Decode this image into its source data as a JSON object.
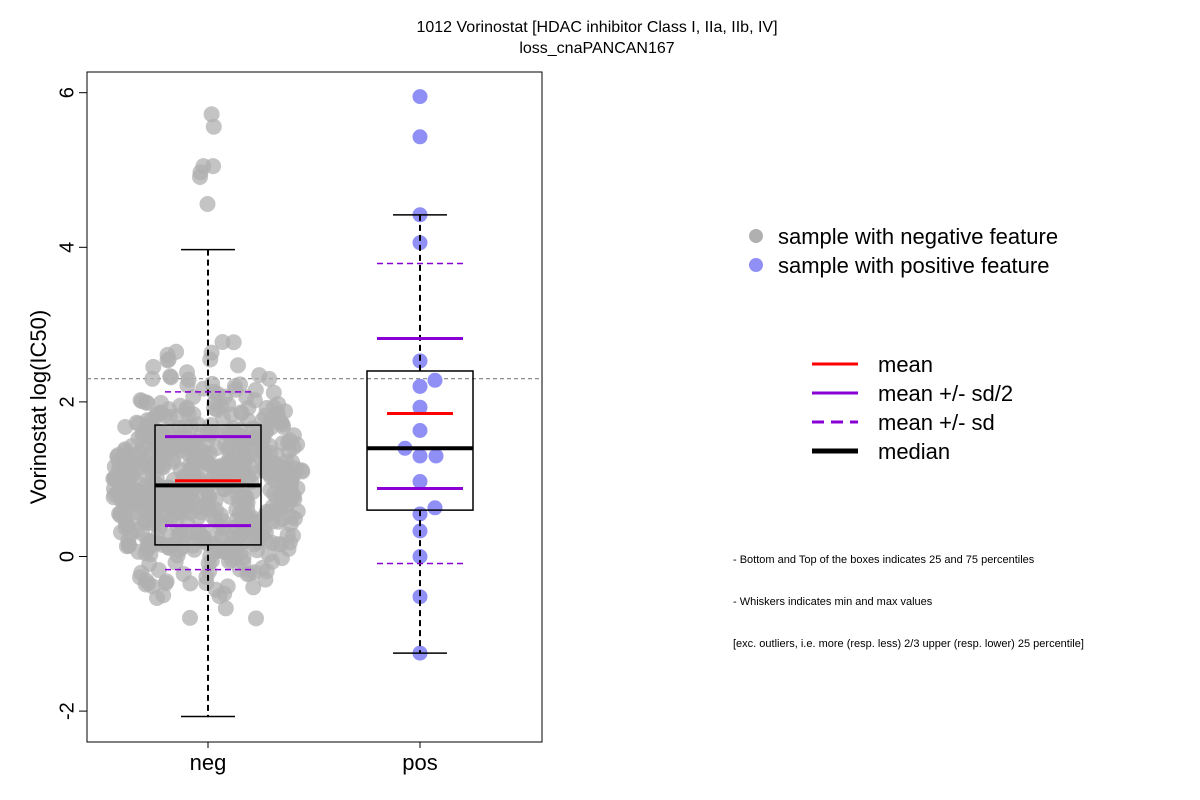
{
  "title": "1012 Vorinostat [HDAC inhibitor Class I, IIa, IIb, IV]",
  "subtitle": "loss_cnaPANCAN167",
  "chart_data": {
    "type": "box",
    "ylabel": "Vorinostat log(IC50)",
    "xlabel": "",
    "ylim": [
      -2.4,
      6.3
    ],
    "yticks": [
      -2,
      0,
      2,
      4,
      6
    ],
    "categories": [
      "neg",
      "pos"
    ],
    "threshold_line": 2.3,
    "groups": [
      {
        "name": "neg",
        "color": "#b0b0b0",
        "q1": 0.15,
        "median": 0.92,
        "q3": 1.7,
        "whisker_low": -2.07,
        "whisker_high": 3.97,
        "mean": 0.98,
        "mean_plus_half_sd": 1.55,
        "mean_minus_half_sd": 0.4,
        "mean_plus_sd": 2.13,
        "mean_minus_sd": -0.17,
        "outliers": [
          5.72,
          5.56,
          5.05,
          5.05,
          4.97,
          4.91,
          4.56
        ]
      },
      {
        "name": "pos",
        "color": "#8f8ff5",
        "q1": 0.6,
        "median": 1.4,
        "q3": 2.4,
        "whisker_low": -1.25,
        "whisker_high": 4.42,
        "mean": 1.85,
        "mean_plus_half_sd": 2.82,
        "mean_minus_half_sd": 0.88,
        "mean_plus_sd": 3.79,
        "mean_minus_sd": -0.09,
        "points": [
          5.95,
          5.43,
          4.42,
          4.06,
          2.53,
          2.28,
          2.2,
          1.93,
          1.63,
          1.4,
          1.3,
          1.3,
          0.97,
          0.63,
          0.55,
          0.33,
          0.0,
          -0.52,
          -1.25
        ]
      }
    ],
    "legend": {
      "points": [
        {
          "label": "sample with negative feature",
          "color": "#b0b0b0"
        },
        {
          "label": "sample with positive feature",
          "color": "#8f8ff5"
        }
      ],
      "lines": [
        {
          "label": "mean",
          "color": "#ff0000",
          "style": "solid"
        },
        {
          "label": "mean +/- sd/2",
          "color": "#8a00d4",
          "style": "solid"
        },
        {
          "label": "mean +/- sd",
          "color": "#8a00d4",
          "style": "dashed"
        },
        {
          "label": "median",
          "color": "#000000",
          "style": "thick"
        }
      ]
    },
    "footnote": [
      "- Bottom and Top of the boxes indicates 25 and 75 percentiles",
      "- Whiskers indicates min and max values",
      "[exc. outliers, i.e. more (resp. less) 2/3 upper (resp. lower) 25 percentile]"
    ]
  }
}
